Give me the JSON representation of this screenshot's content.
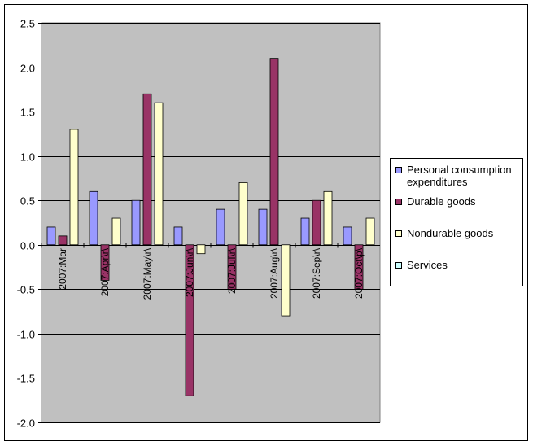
{
  "chart_data": {
    "type": "bar",
    "categories": [
      "2007:Mar",
      "2007:Apr\\r\\",
      "2007:May\\r\\",
      "2007:Jun\\r\\",
      "2007:Jul\\r\\",
      "2007:Aug\\r\\",
      "2007:Sep\\r\\",
      "2007:Oct\\p\\"
    ],
    "series": [
      {
        "name": "Personal consumption expenditures",
        "color": "#9999ff",
        "values": [
          0.2,
          0.6,
          0.5,
          0.2,
          0.4,
          0.4,
          0.3,
          0.2
        ]
      },
      {
        "name": "Durable goods",
        "color": "#993366",
        "values": [
          0.1,
          -0.4,
          1.7,
          -1.7,
          -0.5,
          2.1,
          0.5,
          -0.5
        ]
      },
      {
        "name": "Nondurable goods",
        "color": "#ffffcc",
        "values": [
          1.3,
          0.3,
          1.6,
          -0.1,
          0.7,
          -0.8,
          0.6,
          0.3
        ]
      },
      {
        "name": "Services",
        "color": "#ccffff",
        "values": [
          null,
          null,
          null,
          null,
          null,
          null,
          null,
          null
        ]
      }
    ],
    "yticks": [
      "2.5",
      "2.0",
      "1.5",
      "1.0",
      "0.5",
      "0.0",
      "-0.5",
      "-1.0",
      "-1.5",
      "-2.0"
    ],
    "ylim": [
      -2.0,
      2.5
    ],
    "grid": true,
    "plot_background": "#c0c0c0",
    "legend_position": "right",
    "title": "",
    "xlabel": "",
    "ylabel": ""
  }
}
